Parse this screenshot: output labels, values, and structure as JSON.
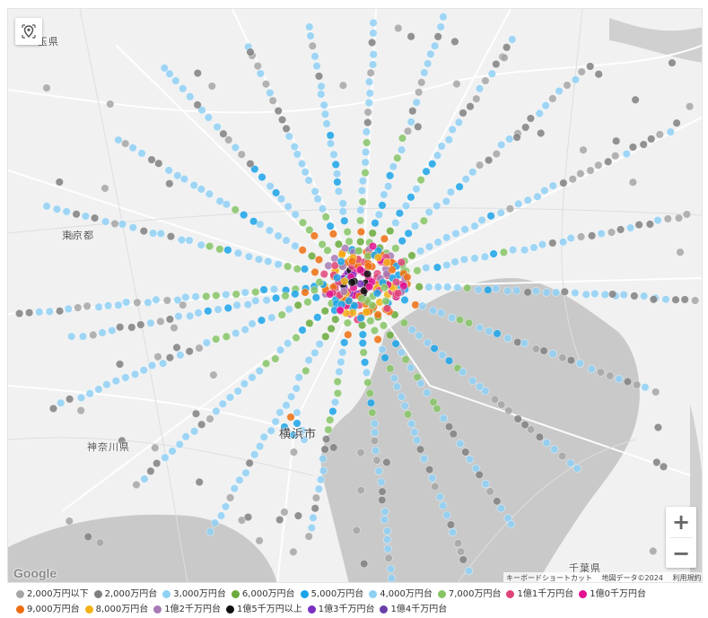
{
  "map": {
    "labels": {
      "saitama": "玉県",
      "tokyo": "東京都",
      "kanagawa": "神奈川県",
      "yokohama": "横浜市",
      "chiba": "千葉県"
    },
    "attribution": {
      "shortcuts": "キーボードショートカット",
      "map_data": "地図データ©2024",
      "terms": "利用規約"
    },
    "google_logo": "Google",
    "zoom_in": "+",
    "zoom_out": "−",
    "locate_icon": "locate-icon"
  },
  "legend": [
    {
      "label": "2,000万円以下",
      "color": "#a6a6a6"
    },
    {
      "label": "2,000万円台",
      "color": "#808080"
    },
    {
      "label": "3,000万円台",
      "color": "#8fd0f5"
    },
    {
      "label": "6,000万円台",
      "color": "#6aaa3c"
    },
    {
      "label": "5,000万円台",
      "color": "#1aa3e8"
    },
    {
      "label": "4,000万円台",
      "color": "#8fd0f5"
    },
    {
      "label": "7,000万円台",
      "color": "#86c466"
    },
    {
      "label": "1億1千万円台",
      "color": "#e0447a"
    },
    {
      "label": "1億0千万円台",
      "color": "#e3108f"
    },
    {
      "label": "9,000万円台",
      "color": "#ee6e10"
    },
    {
      "label": "8,000万円台",
      "color": "#f5b214"
    },
    {
      "label": "1億2千万円台",
      "color": "#a77ab5"
    },
    {
      "label": "1億5千万円以上",
      "color": "#111111"
    },
    {
      "label": "1億3千万円台",
      "color": "#7a2fc0"
    },
    {
      "label": "1億4千万円台",
      "color": "#6a3fa8"
    }
  ]
}
